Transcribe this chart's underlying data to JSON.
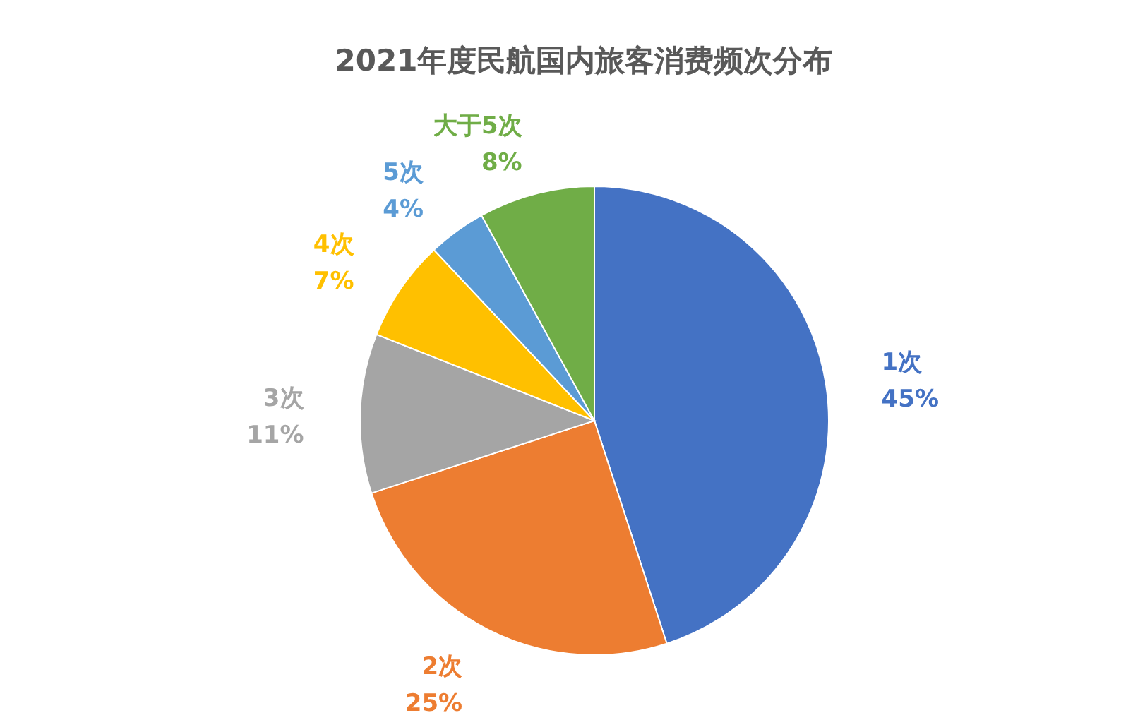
{
  "chart_data": {
    "type": "pie",
    "title": "2021年度民航国内旅客消费频次分布",
    "categories": [
      "1次",
      "2次",
      "3次",
      "4次",
      "5次",
      "大于5次"
    ],
    "values": [
      45,
      25,
      11,
      7,
      4,
      8
    ],
    "colors": [
      "#4472c4",
      "#ed7d31",
      "#a5a5a5",
      "#ffc000",
      "#5b9bd5",
      "#70ad47"
    ],
    "value_labels": [
      "45%",
      "25%",
      "11%",
      "7%",
      "4%",
      "8%"
    ],
    "legend": false
  }
}
